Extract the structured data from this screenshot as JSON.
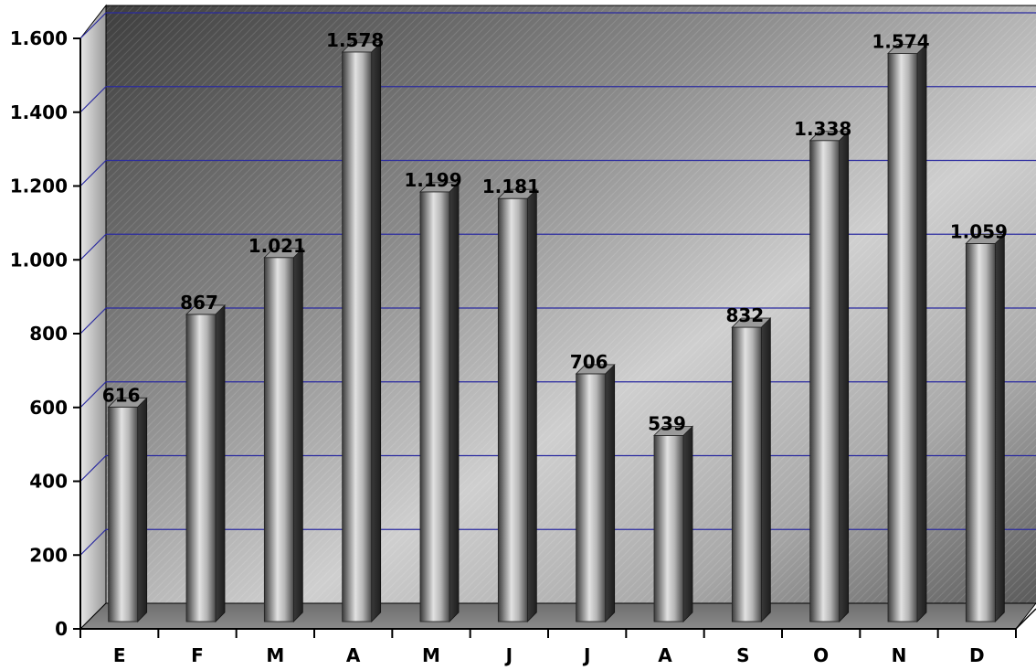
{
  "chart_data": {
    "type": "bar",
    "categories": [
      "E",
      "F",
      "M",
      "A",
      "M",
      "J",
      "J",
      "A",
      "S",
      "O",
      "N",
      "D"
    ],
    "values": [
      616,
      867,
      1021,
      1578,
      1199,
      1181,
      706,
      539,
      832,
      1338,
      1574,
      1059
    ],
    "value_labels": [
      "616",
      "867",
      "1.021",
      "1.578",
      "1.199",
      "1.181",
      "706",
      "539",
      "832",
      "1.338",
      "1.574",
      "1.059"
    ],
    "y_ticks": [
      0,
      200,
      400,
      600,
      800,
      1000,
      1200,
      1400,
      1600
    ],
    "y_tick_labels": [
      "0",
      "200",
      "400",
      "600",
      "800",
      "1.000",
      "1.200",
      "1.400",
      "1.600"
    ],
    "ylim": [
      0,
      1600
    ],
    "grid": true,
    "legend": "none",
    "style": "3d-cylinder",
    "colors": {
      "bar_light": "#d8d8d8",
      "bar_dark": "#4a4a4a",
      "grid": "#2a2aa0",
      "floor": "#808080",
      "wall_light": "#c8c8c8",
      "wall_dark": "#4a4a4a"
    }
  }
}
